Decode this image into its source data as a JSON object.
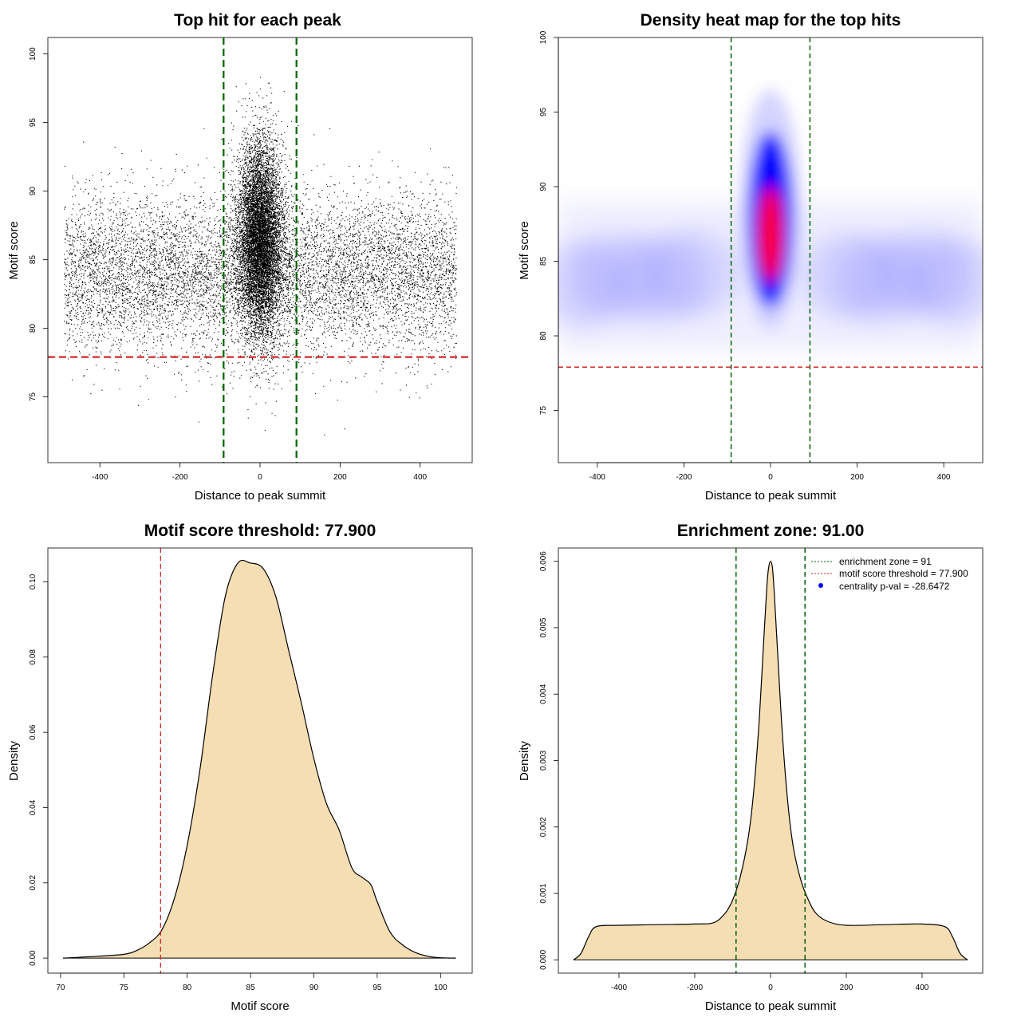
{
  "chart_data": [
    {
      "type": "scatter",
      "title": "Top hit for each peak",
      "xlabel": "Distance to peak summit",
      "ylabel": "Motif score",
      "xlim": [
        -530,
        530
      ],
      "ylim": [
        70.2,
        101.2
      ],
      "xticks": [
        "-400",
        "-200",
        "0",
        "200",
        "400"
      ],
      "yticks": [
        "75",
        "80",
        "85",
        "90",
        "95",
        "100"
      ],
      "vlines": [
        -91,
        91
      ],
      "hline": 77.9,
      "colors": {
        "points": "#000000",
        "vline": "#006400",
        "hline": "#d62728"
      },
      "points_summary": {
        "background": {
          "x_range": [
            -490,
            490
          ],
          "y_center": 84,
          "y_sd": 2.8,
          "n_approx": 9000
        },
        "center": {
          "x_center": 0,
          "x_sd": 28,
          "y_center": 86.5,
          "y_sd": 3.5,
          "y_max": 99.5,
          "n_approx": 9000
        }
      }
    },
    {
      "type": "heatmap",
      "title": "Density heat map for the top hits",
      "xlabel": "Distance to peak summit",
      "ylabel": "Motif score",
      "xlim": [
        -490,
        490
      ],
      "ylim": [
        71.5,
        100
      ],
      "xticks": [
        "-400",
        "-200",
        "0",
        "200",
        "400"
      ],
      "yticks": [
        "75",
        "80",
        "85",
        "90",
        "95",
        "100"
      ],
      "vlines": [
        -91,
        91
      ],
      "hline": 77.9,
      "peak_center": {
        "x": 0,
        "y": 86.5
      },
      "colorscale": [
        "#ffffff",
        "#0000ff",
        "#ff0000"
      ],
      "colors": {
        "vline": "#006400",
        "hline": "#d62728"
      }
    },
    {
      "type": "area",
      "title": "Motif score threshold: 77.900",
      "xlabel": "Motif score",
      "ylabel": "Density",
      "xlim": [
        69,
        102.5
      ],
      "ylim": [
        -0.004,
        0.109
      ],
      "xticks": [
        "70",
        "75",
        "80",
        "85",
        "90",
        "95",
        "100"
      ],
      "yticks": [
        "0.00",
        "0.02",
        "0.04",
        "0.06",
        "0.08",
        "0.10"
      ],
      "vline": 77.9,
      "fill": "#f5deb3",
      "x": [
        70.2,
        73,
        75,
        76,
        77,
        78,
        79,
        80,
        81,
        82,
        83,
        84,
        85,
        86,
        87,
        88,
        89,
        90,
        91,
        92,
        93,
        93.8,
        94.5,
        95,
        96,
        97,
        98,
        99,
        100,
        101.2
      ],
      "y": [
        0.0,
        0.0005,
        0.001,
        0.002,
        0.004,
        0.0075,
        0.016,
        0.03,
        0.05,
        0.075,
        0.096,
        0.105,
        0.105,
        0.1035,
        0.096,
        0.082,
        0.068,
        0.053,
        0.041,
        0.034,
        0.024,
        0.0215,
        0.0195,
        0.015,
        0.007,
        0.0035,
        0.0015,
        0.0005,
        0.0001,
        0.0
      ]
    },
    {
      "type": "area",
      "title": "Enrichment zone: 91.00",
      "xlabel": "Distance to peak summit",
      "ylabel": "Density",
      "xlim": [
        -560,
        560
      ],
      "ylim": [
        -0.0002,
        0.0062
      ],
      "xticks": [
        "-400",
        "-200",
        "0",
        "200",
        "400"
      ],
      "yticks": [
        "0.000",
        "0.001",
        "0.002",
        "0.003",
        "0.004",
        "0.005",
        "0.006"
      ],
      "vlines": [
        -91,
        91
      ],
      "fill": "#f5deb3",
      "x": [
        -520,
        -500,
        -480,
        -460,
        -400,
        -300,
        -200,
        -150,
        -120,
        -100,
        -80,
        -60,
        -45,
        -30,
        -20,
        -10,
        -5,
        0,
        5,
        10,
        20,
        30,
        45,
        60,
        80,
        100,
        120,
        150,
        200,
        300,
        400,
        460,
        480,
        500,
        520
      ],
      "y": [
        0.0,
        0.0001,
        0.00035,
        0.0005,
        0.00052,
        0.00053,
        0.00054,
        0.00056,
        0.0007,
        0.0009,
        0.00125,
        0.0018,
        0.0025,
        0.0036,
        0.0046,
        0.0056,
        0.0059,
        0.006,
        0.0059,
        0.0055,
        0.0045,
        0.0035,
        0.0024,
        0.0017,
        0.0012,
        0.0009,
        0.0007,
        0.00058,
        0.00052,
        0.00053,
        0.00054,
        0.0005,
        0.00035,
        0.0001,
        0.0
      ],
      "legend": [
        {
          "label": "enrichment zone = 91",
          "color": "#006400",
          "kind": "dotted"
        },
        {
          "label": "motif score threshold = 77.900",
          "color": "#d62728",
          "kind": "dotted"
        },
        {
          "label": "centrality p-val = -28.6472",
          "color": "#0000ff",
          "kind": "point"
        }
      ],
      "legend_position": "top-right"
    }
  ]
}
